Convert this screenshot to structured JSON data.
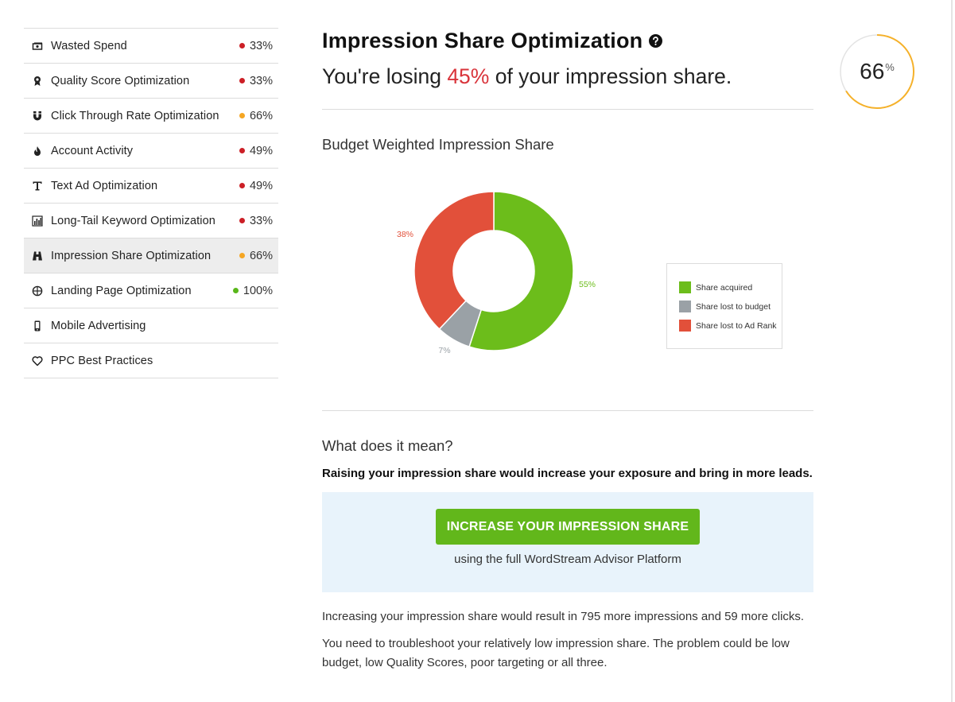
{
  "sidebar": {
    "items": [
      {
        "label": "Wasted Spend",
        "score": "33%",
        "status": "red",
        "icon": "cash-icon",
        "active": false
      },
      {
        "label": "Quality Score Optimization",
        "score": "33%",
        "status": "red",
        "icon": "award-ribbon-icon",
        "active": false
      },
      {
        "label": "Click Through Rate Optimization",
        "score": "66%",
        "status": "orange",
        "icon": "magnet-icon",
        "active": false
      },
      {
        "label": "Account Activity",
        "score": "49%",
        "status": "red",
        "icon": "flame-icon",
        "active": false
      },
      {
        "label": "Text Ad Optimization",
        "score": "49%",
        "status": "red",
        "icon": "text-icon",
        "active": false
      },
      {
        "label": "Long-Tail Keyword Optimization",
        "score": "33%",
        "status": "red",
        "icon": "bar-chart-icon",
        "active": false
      },
      {
        "label": "Impression Share Optimization",
        "score": "66%",
        "status": "orange",
        "icon": "binoculars-icon",
        "active": true
      },
      {
        "label": "Landing Page Optimization",
        "score": "100%",
        "status": "green",
        "icon": "crosshair-icon",
        "active": false
      },
      {
        "label": "Mobile Advertising",
        "score": "",
        "status": "",
        "icon": "mobile-phone-icon",
        "active": false
      },
      {
        "label": "PPC Best Practices",
        "score": "",
        "status": "",
        "icon": "heart-icon",
        "active": false
      }
    ]
  },
  "colors": {
    "red": "#cc1f26",
    "orange": "#f5a623",
    "green": "#59b71a",
    "gauge": "#f5b12a",
    "acquired": "#6cbd1b",
    "budget": "#9aa1a6",
    "adrank": "#e2503a",
    "cta": "#62b71b",
    "highlight": "#d9343b"
  },
  "header": {
    "title": "Impression Share Optimization",
    "subtitle_pre": "You're losing ",
    "subtitle_highlight": "45%",
    "subtitle_post": " of your impression share."
  },
  "gauge": {
    "value": 66,
    "label": "66",
    "unit": "%"
  },
  "chart_section": {
    "title": "Budget Weighted Impression Share"
  },
  "chart_data": {
    "type": "pie",
    "donut": true,
    "title": "",
    "slices": [
      {
        "name": "Share acquired",
        "value": 55,
        "label": "55%",
        "color": "#6cbd1b"
      },
      {
        "name": "Share lost to budget",
        "value": 7,
        "label": "7%",
        "color": "#9aa1a6"
      },
      {
        "name": "Share lost to Ad Rank",
        "value": 38,
        "label": "38%",
        "color": "#e2503a"
      }
    ],
    "legend": "right"
  },
  "meaning": {
    "title": "What does it mean?",
    "bold": "Raising your impression share would increase your exposure and bring in more leads."
  },
  "cta": {
    "button": "INCREASE YOUR IMPRESSION SHARE",
    "sub": "using the full WordStream Advisor Platform"
  },
  "details": {
    "p1": "Increasing your impression share would result in 795 more impressions and 59 more clicks.",
    "p2": "You need to troubleshoot your relatively low impression share. The problem could be low budget, low Quality Scores, poor targeting or all three."
  }
}
